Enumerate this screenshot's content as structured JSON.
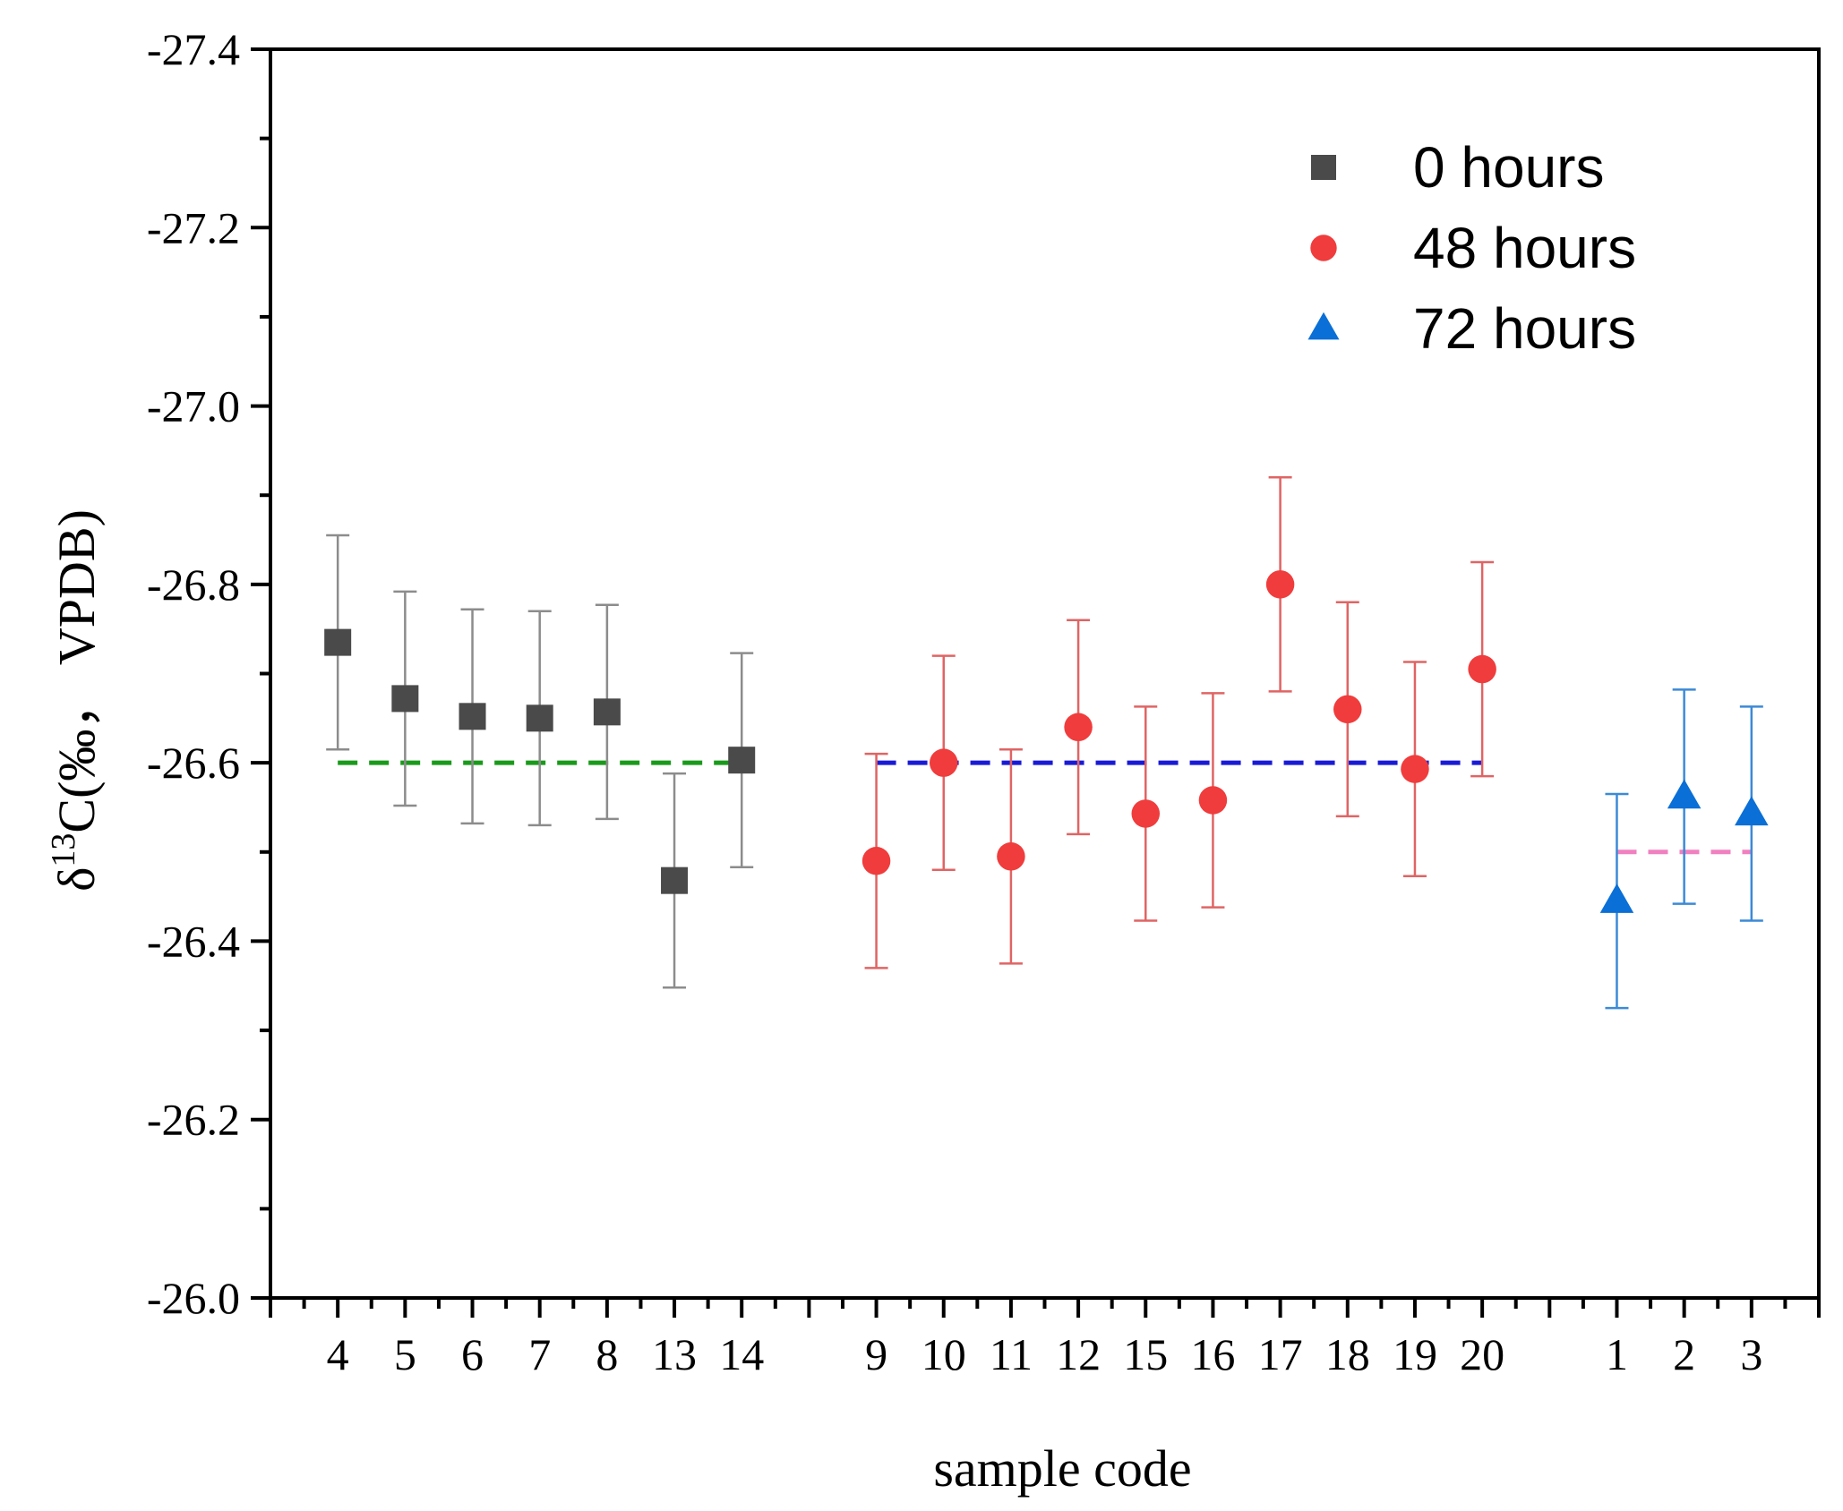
{
  "chart_data": {
    "type": "scatter",
    "title": "",
    "xlabel": "sample code",
    "ylabel_parts": {
      "prefix": "δ",
      "superscript": "13",
      "suffix": "C(‰，  VPDB)"
    },
    "ylim": [
      -26.0,
      -27.4
    ],
    "y_inverted": true,
    "y_ticks": [
      -26.0,
      -26.2,
      -26.4,
      -26.6,
      -26.8,
      -27.0,
      -27.2,
      -27.4
    ],
    "y_tick_labels": [
      "-26.0",
      "-26.2",
      "-26.4",
      "-26.6",
      "-26.8",
      "-27.0",
      "-27.2",
      "-27.4"
    ],
    "x_slots": 22,
    "legend_position": "top-right",
    "series": [
      {
        "name": "0 hours",
        "marker": "square",
        "color": "#4a4a4a",
        "error_color": "#8c8c8c",
        "mean": -26.6,
        "mean_color": "#1a9a1a",
        "points": [
          {
            "slot": 1,
            "label": "4",
            "value": -26.735,
            "err": 0.12
          },
          {
            "slot": 2,
            "label": "5",
            "value": -26.672,
            "err": 0.12
          },
          {
            "slot": 3,
            "label": "6",
            "value": -26.652,
            "err": 0.12
          },
          {
            "slot": 4,
            "label": "7",
            "value": -26.65,
            "err": 0.12
          },
          {
            "slot": 5,
            "label": "8",
            "value": -26.657,
            "err": 0.12
          },
          {
            "slot": 6,
            "label": "13",
            "value": -26.468,
            "err": 0.12
          },
          {
            "slot": 7,
            "label": "14",
            "value": -26.603,
            "err": 0.12
          }
        ]
      },
      {
        "name": "48 hours",
        "marker": "circle",
        "color": "#f03c3c",
        "error_color": "#e06464",
        "mean": -26.6,
        "mean_color": "#1a1ad6",
        "points": [
          {
            "slot": 9,
            "label": "9",
            "value": -26.49,
            "err": 0.12
          },
          {
            "slot": 10,
            "label": "10",
            "value": -26.6,
            "err": 0.12
          },
          {
            "slot": 11,
            "label": "11",
            "value": -26.495,
            "err": 0.12
          },
          {
            "slot": 12,
            "label": "12",
            "value": -26.64,
            "err": 0.12
          },
          {
            "slot": 13,
            "label": "15",
            "value": -26.543,
            "err": 0.12
          },
          {
            "slot": 14,
            "label": "16",
            "value": -26.558,
            "err": 0.12
          },
          {
            "slot": 15,
            "label": "17",
            "value": -26.8,
            "err": 0.12
          },
          {
            "slot": 16,
            "label": "18",
            "value": -26.66,
            "err": 0.12
          },
          {
            "slot": 17,
            "label": "19",
            "value": -26.593,
            "err": 0.12
          },
          {
            "slot": 18,
            "label": "20",
            "value": -26.705,
            "err": 0.12
          }
        ]
      },
      {
        "name": "72 hours",
        "marker": "triangle",
        "color": "#0a6fd6",
        "error_color": "#3c8ad6",
        "mean": -26.5,
        "mean_color": "#f080c0",
        "points": [
          {
            "slot": 20,
            "label": "1",
            "value": -26.445,
            "err": 0.12
          },
          {
            "slot": 21,
            "label": "2",
            "value": -26.562,
            "err": 0.12
          },
          {
            "slot": 22,
            "label": "3",
            "value": -26.543,
            "err": 0.12
          }
        ]
      }
    ]
  }
}
